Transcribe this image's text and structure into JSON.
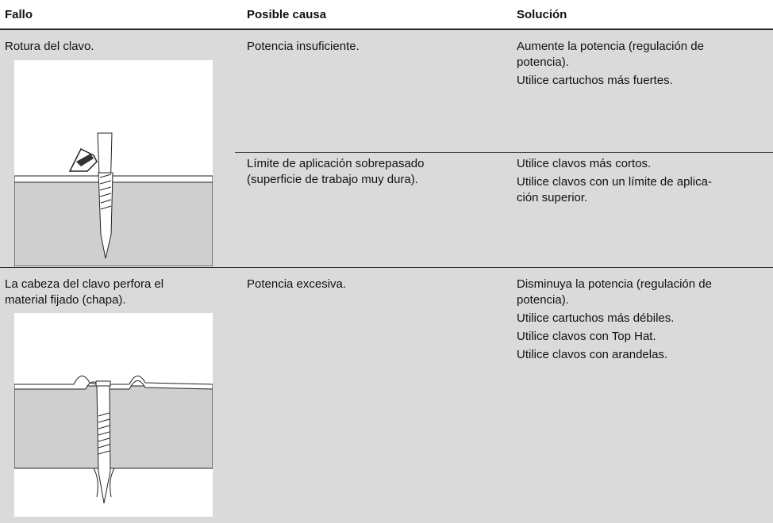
{
  "header": {
    "columns": [
      "Fallo",
      "Posible causa",
      "Solución"
    ]
  },
  "rows": [
    {
      "fault": [
        "Rotura del clavo."
      ],
      "causes": [
        {
          "cause": [
            "Potencia insuficiente."
          ],
          "solutions": [
            [
              "Aumente la potencia (regulación de",
              "potencia)."
            ],
            [
              "Utilice cartuchos más fuertes."
            ]
          ]
        },
        {
          "cause": [
            "Límite de aplicación sobrepasado",
            "(superficie de trabajo muy dura)."
          ],
          "solutions": [
            [
              "Utilice clavos más cortos."
            ],
            [
              "Utilice clavos con un límite de aplica-",
              "ción superior."
            ]
          ]
        }
      ]
    },
    {
      "fault": [
        "La cabeza del clavo perfora el",
        "material fijado (chapa)."
      ],
      "causes": [
        {
          "cause": [
            "Potencia excesiva."
          ],
          "solutions": [
            [
              "Disminuya la potencia (regulación de",
              "potencia)."
            ],
            [
              "Utilice cartuchos más débiles."
            ],
            [
              "Utilice clavos con Top Hat."
            ],
            [
              "Utilice clavos con arandelas."
            ]
          ]
        }
      ]
    }
  ]
}
